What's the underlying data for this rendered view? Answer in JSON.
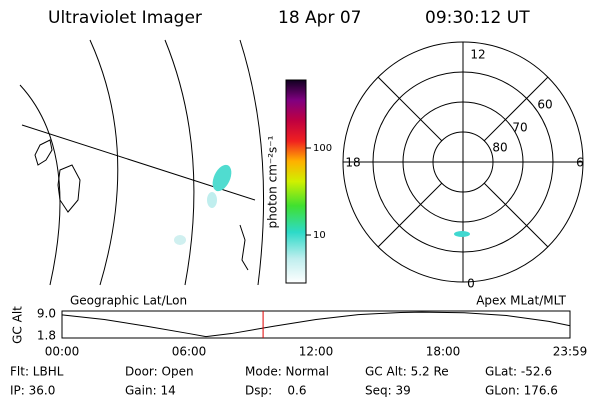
{
  "header": {
    "title": "Ultraviolet Imager",
    "date": "18 Apr 07",
    "time": "09:30:12 UT"
  },
  "colorbar": {
    "label": "photon cm⁻²s⁻¹",
    "ticks": [
      "100",
      "10"
    ]
  },
  "polar": {
    "mlt_labels": [
      "12",
      "18",
      "6",
      "0"
    ],
    "lat_labels": [
      "60",
      "70",
      "80"
    ]
  },
  "altitude_panel": {
    "left_label": "Geographic Lat/Lon",
    "right_label": "Apex MLat/MLT",
    "ylabel": "GC Alt",
    "yticks": [
      "9.0",
      "1.8"
    ],
    "xticks": [
      "00:00",
      "06:00",
      "12:00",
      "18:00",
      "23:59"
    ],
    "hours": [
      0,
      2,
      4,
      6,
      6.8,
      8,
      10,
      12,
      14,
      16,
      17,
      19,
      21,
      23,
      23.98
    ],
    "alt": [
      8.7,
      7.2,
      5,
      2.6,
      1.6,
      2.6,
      5,
      7.2,
      8.8,
      9.5,
      9.6,
      9.4,
      8.5,
      6.6,
      5.2
    ],
    "current_hour": 9.5
  },
  "info": [
    [
      "Flt: LBHL",
      "Door: Open",
      "Mode: Normal",
      "GC Alt: 5.2 Re",
      "GLat: -52.6"
    ],
    [
      "IP: 36.0",
      "Gain: 14",
      "Dsp:    0.6",
      "Seq: 39",
      "GLon: 176.6"
    ]
  ]
}
